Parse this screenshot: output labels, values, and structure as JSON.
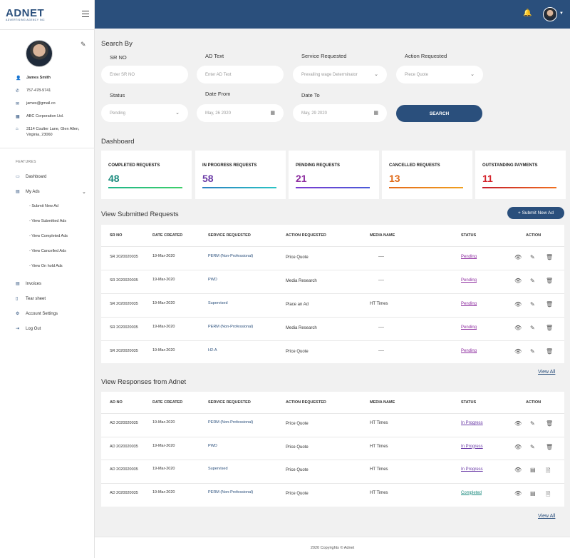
{
  "brand": {
    "name": "ADNET",
    "tagline": "ADVERTISING AGENCY INC"
  },
  "profile": {
    "name": "James Smith",
    "phone": "757-478-9741",
    "email": "james@gmail.co",
    "company": "ABC Corporation Ltd.",
    "address": "3114 Coulter Lane, Glen Allen, Virginia, 23060"
  },
  "features_label": "FEATURES",
  "nav": {
    "dashboard": "Dashboard",
    "my_ads": "My Ads",
    "subs": [
      "- Submit New Ad",
      "- View Submitted Ads",
      "- View Completed Ads",
      "- View Cancelled Ads",
      "- View On hold Ads"
    ],
    "invoices": "Invoices",
    "tear_sheet": "Tear sheet",
    "account_settings": "Account Settings",
    "logout": "Log Out"
  },
  "search": {
    "title": "Search By",
    "sr_label": "SR NO",
    "sr_placeholder": "Enter SR NO",
    "ad_label": "AD Text",
    "ad_placeholder": "Enter AD Text",
    "svc_label": "Service Requested",
    "svc_value": "Prevailing wage Determinator",
    "action_label": "Action Requested",
    "action_value": "Piece Quote",
    "status_label": "Status",
    "status_value": "Pending",
    "from_label": "Date From",
    "from_value": "May, 26 2020",
    "to_label": "Date To",
    "to_value": "May, 29 2020",
    "button": "SEARCH"
  },
  "dashboard": {
    "title": "Dashboard",
    "cards": [
      {
        "label": "COMPLETED REQUESTS",
        "value": "48",
        "color": "#1a8a7d",
        "bar": "linear-gradient(90deg,#1fb58a,#3ecf6a)"
      },
      {
        "label": "IN PROGRESS REQUESTS",
        "value": "58",
        "color": "#6a3aa6",
        "bar": "linear-gradient(90deg,#2a7fc0,#2ac4c4)"
      },
      {
        "label": "PENDING REQUESTS",
        "value": "21",
        "color": "#8e2ea0",
        "bar": "linear-gradient(90deg,#7b3ad0,#4a5ad8)"
      },
      {
        "label": "CANCELLED REQUESTS",
        "value": "13",
        "color": "#e06a18",
        "bar": "linear-gradient(90deg,#e46a1a,#f0a020)"
      },
      {
        "label": "OUTSTANDING PAYMENTS",
        "value": "11",
        "color": "#d4222a",
        "bar": "linear-gradient(90deg,#c41c2a,#f07020)"
      }
    ]
  },
  "submitted": {
    "title": "View Submitted Requests",
    "add_button": "+ Submit New Ad",
    "view_all": "View All",
    "headers": [
      "SR NO",
      "DATE CREATED",
      "SERVICE REQUESTED",
      "ACTION REQUESTED",
      "MEDIA NAME",
      "STATUS",
      "ACTION"
    ],
    "rows": [
      {
        "no": "SR 2020020035",
        "date": "19-Mar-2020",
        "service": "PERM (Non-Professional)",
        "action": "Price Quote",
        "media": "----",
        "status": "Pending"
      },
      {
        "no": "SR 2020020035",
        "date": "19-Mar-2020",
        "service": "PWD",
        "action": "Media Research",
        "media": "----",
        "status": "Pending"
      },
      {
        "no": "SR 2020020035",
        "date": "19-Mar-2020",
        "service": "Supervised",
        "action": "Place an Ad",
        "media": "HT Times",
        "status": "Pending"
      },
      {
        "no": "SR 2020020035",
        "date": "19-Mar-2020",
        "service": "PERM (Non-Professional)",
        "action": "Media Research",
        "media": "----",
        "status": "Pending"
      },
      {
        "no": "SR 2020020035",
        "date": "19-Mar-2020",
        "service": "H2-A",
        "action": "Price Quote",
        "media": "----",
        "status": "Pending"
      }
    ]
  },
  "responses": {
    "title": "View Responses from Adnet",
    "view_all": "View All",
    "headers": [
      "AD NO",
      "DATE CREATED",
      "SERVICE REQUESTED",
      "ACTION REQUESTED",
      "MEDIA NAME",
      "STATUS",
      "ACTION"
    ],
    "rows": [
      {
        "no": "AD 2020020035",
        "date": "19-Mar-2020",
        "service": "PERM (Non-Professional)",
        "action": "Price Quote",
        "media": "HT Times",
        "status": "In Progress"
      },
      {
        "no": "AD 2020020035",
        "date": "19-Mar-2020",
        "service": "PWD",
        "action": "Price Quote",
        "media": "HT Times",
        "status": "In Progress"
      },
      {
        "no": "AD 2020020035",
        "date": "19-Mar-2020",
        "service": "Supervised",
        "action": "Price Quote",
        "media": "HT Times",
        "status": "In Progress"
      },
      {
        "no": "AD 2020020035",
        "date": "19-Mar-2020",
        "service": "PERM (Non-Professional)",
        "action": "Price Quote",
        "media": "HT Times",
        "status": "Completed"
      }
    ]
  },
  "footer": "2020 Copyrights © Adnet",
  "colors": {
    "primary": "#2a4f7c",
    "pending": "#8e2ea0",
    "in_progress": "#6a3aa6",
    "completed": "#1a8a7d"
  }
}
